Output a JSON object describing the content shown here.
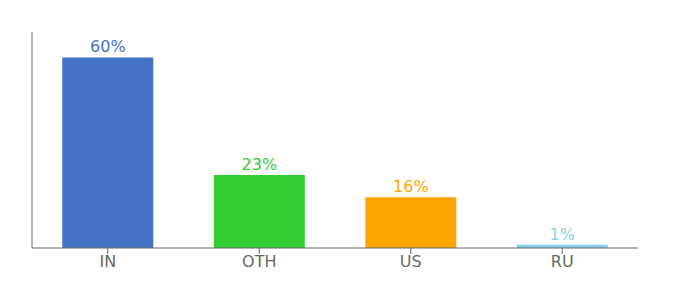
{
  "chart_data": {
    "type": "bar",
    "categories": [
      "IN",
      "OTH",
      "US",
      "RU"
    ],
    "values": [
      60,
      23,
      16,
      1
    ],
    "value_labels": [
      "60%",
      "23%",
      "16%",
      "1%"
    ],
    "colors": [
      "#4472C4",
      "#33CC33",
      "#FFA500",
      "#87CEEB"
    ],
    "ylim": [
      0,
      68
    ],
    "data_labels": true,
    "tick_labels": "x",
    "grid": false
  }
}
